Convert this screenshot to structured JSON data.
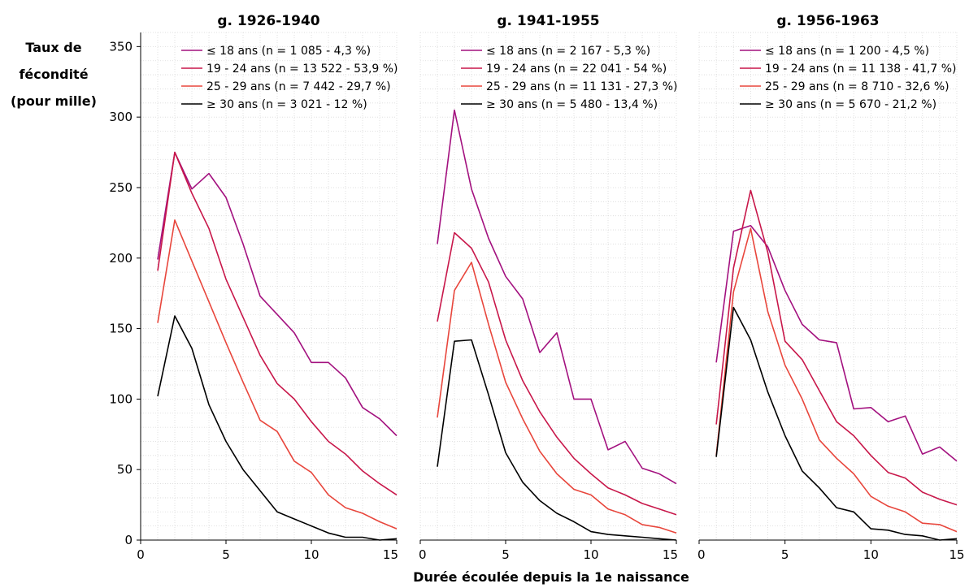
{
  "chart_data": {
    "type": "line",
    "ylabel_lines": [
      "Taux de",
      "fécondité",
      "(pour mille)"
    ],
    "xlabel": "Durée écoulée depuis la 1e naissance",
    "xlim": [
      0,
      15
    ],
    "ylim": [
      0,
      360
    ],
    "xticks": [
      0,
      5,
      10,
      15
    ],
    "yticks": [
      0,
      50,
      100,
      150,
      200,
      250,
      300,
      350
    ],
    "grid": true,
    "legend_position": "top-right",
    "colors": [
      "#a3117f",
      "#c8174a",
      "#e8463c",
      "#000000"
    ],
    "panels": [
      {
        "title": "g. 1926-1940",
        "series": [
          {
            "name": "≤ 18 ans (n = 1 085 - 4,3 %)",
            "x": [
              1,
              2,
              3,
              4,
              5,
              6,
              7,
              8,
              9,
              10,
              11,
              12,
              13,
              14,
              15
            ],
            "values": [
              199,
              275,
              249,
              260,
              243,
              210,
              173,
              160,
              147,
              126,
              126,
              115,
              94,
              86,
              74
            ]
          },
          {
            "name": "19 - 24 ans (n = 13 522 - 53,9 %)",
            "x": [
              1,
              2,
              3,
              4,
              5,
              6,
              7,
              8,
              9,
              10,
              11,
              12,
              13,
              14,
              15
            ],
            "values": [
              191,
              275,
              246,
              221,
              185,
              158,
              131,
              111,
              100,
              84,
              70,
              61,
              49,
              40,
              32
            ]
          },
          {
            "name": "25 - 29 ans (n = 7 442 - 29,7 %)",
            "x": [
              1,
              2,
              3,
              4,
              5,
              6,
              7,
              8,
              9,
              10,
              11,
              12,
              13,
              14,
              15
            ],
            "values": [
              154,
              227,
              198,
              169,
              140,
              112,
              85,
              77,
              56,
              48,
              32,
              23,
              19,
              13,
              8
            ]
          },
          {
            "name": "≥ 30 ans (n = 3 021 - 12 %)",
            "x": [
              1,
              2,
              3,
              4,
              5,
              6,
              7,
              8,
              9,
              10,
              11,
              12,
              13,
              14,
              15
            ],
            "values": [
              102,
              159,
              136,
              96,
              70,
              50,
              35,
              20,
              15,
              10,
              5,
              2,
              2,
              0,
              1
            ]
          }
        ]
      },
      {
        "title": "g. 1941-1955",
        "series": [
          {
            "name": "≤ 18 ans (n = 2 167 - 5,3 %)",
            "x": [
              1,
              2,
              3,
              4,
              5,
              6,
              7,
              8,
              9,
              10,
              11,
              12,
              13,
              14,
              15
            ],
            "values": [
              210,
              305,
              249,
              214,
              187,
              171,
              133,
              147,
              100,
              100,
              64,
              70,
              51,
              47,
              40
            ]
          },
          {
            "name": "19 - 24 ans (n = 22 041 - 54 %)",
            "x": [
              1,
              2,
              3,
              4,
              5,
              6,
              7,
              8,
              9,
              10,
              11,
              12,
              13,
              14,
              15
            ],
            "values": [
              155,
              218,
              207,
              183,
              142,
              113,
              91,
              73,
              58,
              47,
              37,
              32,
              26,
              22,
              18
            ]
          },
          {
            "name": "25 - 29 ans (n = 11 131 - 27,3 %)",
            "x": [
              1,
              2,
              3,
              4,
              5,
              6,
              7,
              8,
              9,
              10,
              11,
              12,
              13,
              14,
              15
            ],
            "values": [
              87,
              177,
              197,
              153,
              112,
              86,
              63,
              47,
              36,
              32,
              22,
              18,
              11,
              9,
              5
            ]
          },
          {
            "name": "≥ 30 ans (n = 5 480 - 13,4 %)",
            "x": [
              1,
              2,
              3,
              4,
              5,
              6,
              7,
              8,
              9,
              10,
              11,
              12,
              13,
              14,
              15
            ],
            "values": [
              52,
              141,
              142,
              103,
              62,
              41,
              28,
              19,
              13,
              6,
              4,
              3,
              2,
              1,
              0
            ]
          }
        ]
      },
      {
        "title": "g. 1956-1963",
        "series": [
          {
            "name": "≤ 18 ans (n = 1 200 - 4,5 %)",
            "x": [
              1,
              2,
              3,
              4,
              5,
              6,
              7,
              8,
              9,
              10,
              11,
              12,
              13,
              14,
              15
            ],
            "values": [
              126,
              219,
              223,
              208,
              177,
              153,
              142,
              140,
              93,
              94,
              84,
              88,
              61,
              66,
              56
            ]
          },
          {
            "name": "19 - 24 ans (n = 11 138 - 41,7 %)",
            "x": [
              1,
              2,
              3,
              4,
              5,
              6,
              7,
              8,
              9,
              10,
              11,
              12,
              13,
              14,
              15
            ],
            "values": [
              82,
              193,
              248,
              204,
              141,
              128,
              106,
              84,
              74,
              60,
              48,
              44,
              34,
              29,
              25
            ]
          },
          {
            "name": "25 - 29 ans (n = 8 710 - 32,6 %)",
            "x": [
              1,
              2,
              3,
              4,
              5,
              6,
              7,
              8,
              9,
              10,
              11,
              12,
              13,
              14,
              15
            ],
            "values": [
              60,
              176,
              221,
              162,
              124,
              100,
              71,
              58,
              47,
              31,
              24,
              20,
              12,
              11,
              6
            ]
          },
          {
            "name": "≥ 30 ans (n = 5 670 - 21,2 %)",
            "x": [
              1,
              2,
              3,
              4,
              5,
              6,
              7,
              8,
              9,
              10,
              11,
              12,
              13,
              14,
              15
            ],
            "values": [
              59,
              165,
              142,
              105,
              74,
              49,
              37,
              23,
              20,
              8,
              7,
              4,
              3,
              0,
              1
            ]
          }
        ]
      }
    ]
  }
}
